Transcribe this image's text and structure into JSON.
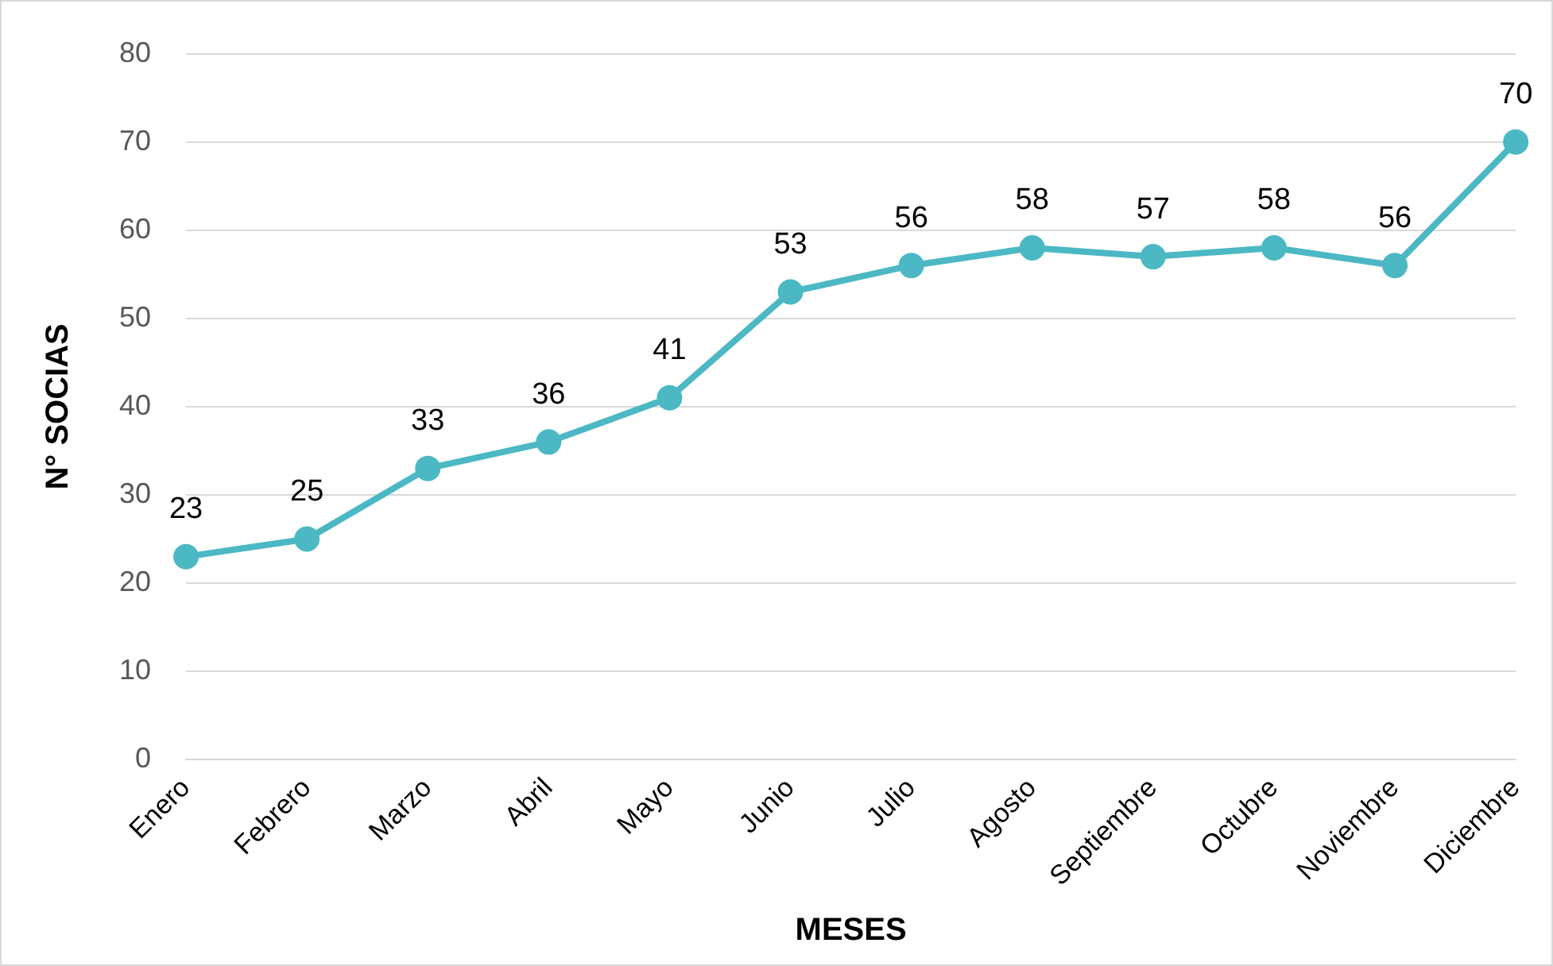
{
  "chart_data": {
    "type": "line",
    "xlabel": "MESES",
    "ylabel": "N° SOCIAS",
    "categories": [
      "Enero",
      "Febrero",
      "Marzo",
      "Abril",
      "Mayo",
      "Junio",
      "Julio",
      "Agosto",
      "Septiembre",
      "Octubre",
      "Noviembre",
      "Diciembre"
    ],
    "series": [
      {
        "color": "#4bb8c4",
        "values": [
          23,
          25,
          33,
          36,
          41,
          53,
          56,
          58,
          57,
          58,
          56,
          70
        ]
      }
    ],
    "ylim": [
      0,
      80
    ],
    "yticks": [
      0,
      10,
      20,
      30,
      40,
      50,
      60,
      70,
      80
    ],
    "grid": "y",
    "data_labels": true,
    "marker": "circle",
    "line_style": "solid"
  }
}
